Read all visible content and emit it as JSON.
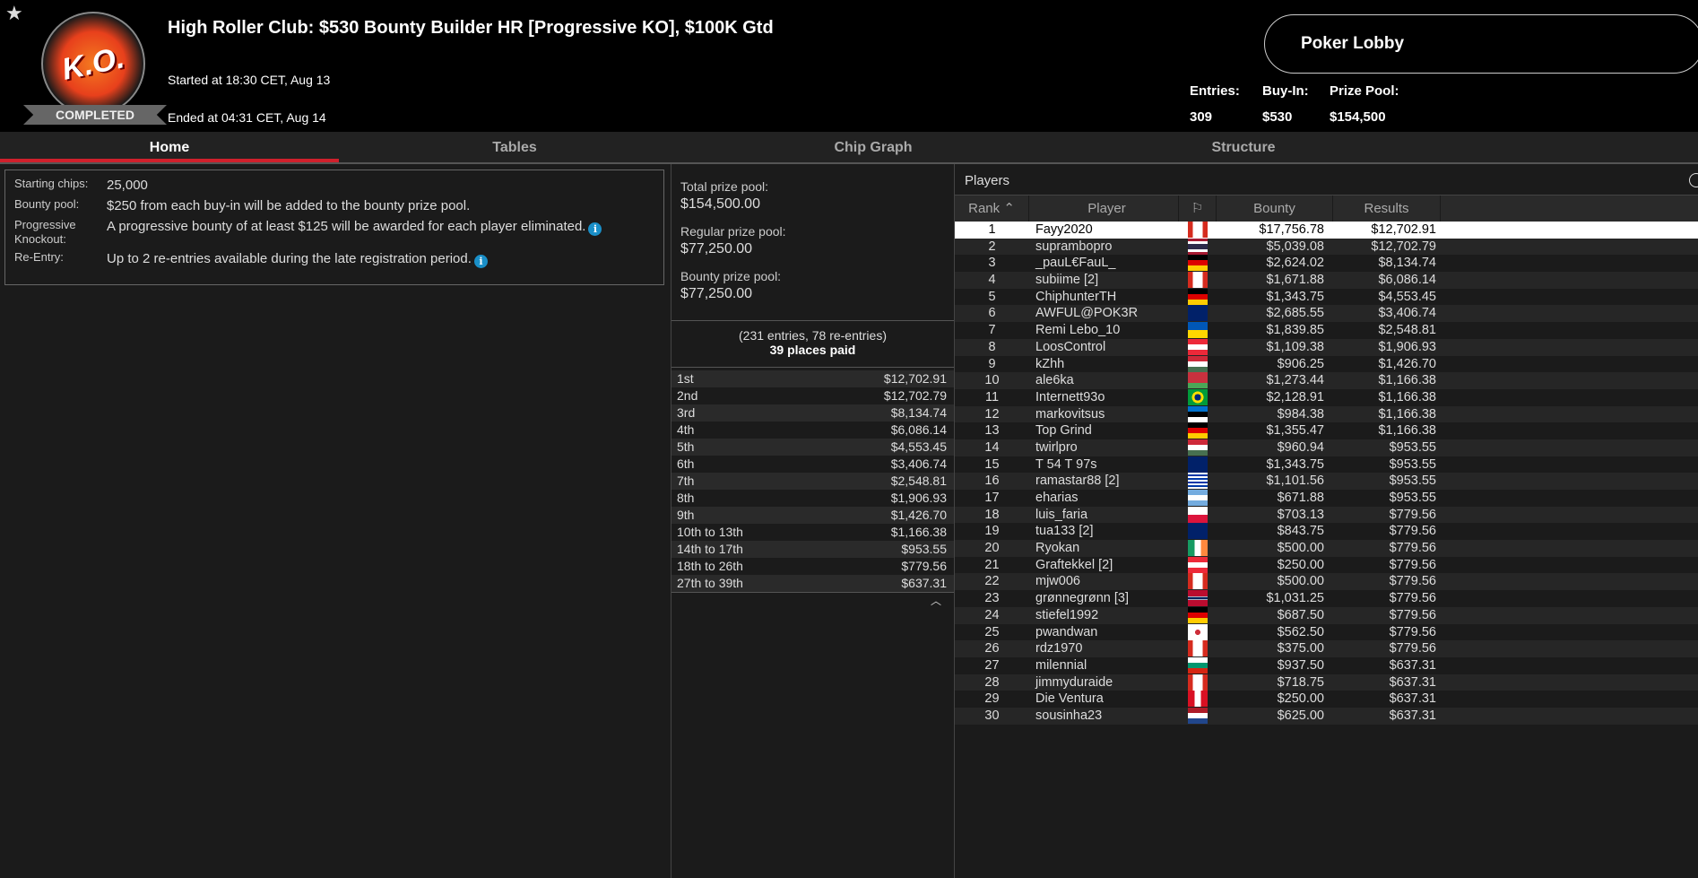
{
  "header": {
    "logo_text": "K.O.",
    "status": "COMPLETED",
    "title": "High Roller Club: $530 Bounty Builder HR [Progressive KO], $100K Gtd",
    "started": "Started at 18:30 CET, Aug 13",
    "ended": "Ended at 04:31 CET, Aug 14",
    "lobby_button": "Poker Lobby",
    "stats": {
      "entries_label": "Entries:",
      "entries": "309",
      "buyin_label": "Buy-In:",
      "buyin": "$530",
      "prize_label": "Prize Pool:",
      "prize": "$154,500"
    }
  },
  "tabs": [
    "Home",
    "Tables",
    "Chip Graph",
    "Structure"
  ],
  "info": [
    {
      "k": "Starting chips:",
      "v": "25,000",
      "i": false
    },
    {
      "k": "Bounty pool:",
      "v": "$250 from each buy-in will be added to the bounty prize pool.",
      "i": false
    },
    {
      "k": "Progressive Knockout:",
      "v": "A progressive bounty of at least $125 will be awarded for each player eliminated.",
      "i": true
    },
    {
      "k": "Re-Entry:",
      "v": "Up to 2 re-entries available during the late registration period.",
      "i": true
    }
  ],
  "pool": {
    "total_label": "Total prize pool:",
    "total": "$154,500.00",
    "regular_label": "Regular prize pool:",
    "regular": "$77,250.00",
    "bounty_label": "Bounty prize pool:",
    "bounty": "$77,250.00",
    "entries_note": "(231 entries, 78 re-entries)",
    "places_paid": "39 places paid"
  },
  "payouts": [
    [
      "1st",
      "$12,702.91"
    ],
    [
      "2nd",
      "$12,702.79"
    ],
    [
      "3rd",
      "$8,134.74"
    ],
    [
      "4th",
      "$6,086.14"
    ],
    [
      "5th",
      "$4,553.45"
    ],
    [
      "6th",
      "$3,406.74"
    ],
    [
      "7th",
      "$2,548.81"
    ],
    [
      "8th",
      "$1,906.93"
    ],
    [
      "9th",
      "$1,426.70"
    ],
    [
      "10th to 13th",
      "$1,166.38"
    ],
    [
      "14th to 17th",
      "$953.55"
    ],
    [
      "18th to 26th",
      "$779.56"
    ],
    [
      "27th to 39th",
      "$637.31"
    ]
  ],
  "players": {
    "title": "Players",
    "columns": [
      "Rank",
      "Player",
      "Bounty",
      "Results"
    ],
    "rows": [
      [
        "1",
        "Fayy2020",
        "ca",
        "$17,756.78",
        "$12,702.91"
      ],
      [
        "2",
        "suprambopro",
        "th",
        "$5,039.08",
        "$12,702.79"
      ],
      [
        "3",
        "_pauL€FauL_",
        "de",
        "$2,624.02",
        "$8,134.74"
      ],
      [
        "4",
        "subiime [2]",
        "ca",
        "$1,671.88",
        "$6,086.14"
      ],
      [
        "5",
        "ChiphunterTH",
        "de",
        "$1,343.75",
        "$4,553.45"
      ],
      [
        "6",
        "AWFUL@POK3R",
        "gb",
        "$2,685.55",
        "$3,406.74"
      ],
      [
        "7",
        "Remi Lebo_10",
        "ua",
        "$1,839.85",
        "$2,548.81"
      ],
      [
        "8",
        "LoosControl",
        "at",
        "$1,109.38",
        "$1,906.93"
      ],
      [
        "9",
        "kZhh",
        "hu",
        "$906.25",
        "$1,426.70"
      ],
      [
        "10",
        "ale6ka",
        "by",
        "$1,273.44",
        "$1,166.38"
      ],
      [
        "11",
        "Internett93o",
        "br",
        "$2,128.91",
        "$1,166.38"
      ],
      [
        "12",
        "markovitsus",
        "ee",
        "$984.38",
        "$1,166.38"
      ],
      [
        "13",
        "Top Grind",
        "de",
        "$1,355.47",
        "$1,166.38"
      ],
      [
        "14",
        "twirlpro",
        "hu",
        "$960.94",
        "$953.55"
      ],
      [
        "15",
        "T 54 T 97s",
        "gb",
        "$1,343.75",
        "$953.55"
      ],
      [
        "16",
        "ramastar88 [2]",
        "uy",
        "$1,101.56",
        "$953.55"
      ],
      [
        "17",
        "eharias",
        "ar",
        "$671.88",
        "$953.55"
      ],
      [
        "18",
        "luis_faria",
        "pl",
        "$703.13",
        "$779.56"
      ],
      [
        "19",
        "tua133 [2]",
        "gb",
        "$843.75",
        "$779.56"
      ],
      [
        "20",
        "Ryokan",
        "ie",
        "$500.00",
        "$779.56"
      ],
      [
        "21",
        "Graftekkel [2]",
        "at",
        "$250.00",
        "$779.56"
      ],
      [
        "22",
        "mjw006",
        "ca",
        "$500.00",
        "$779.56"
      ],
      [
        "23",
        "grønnegrønn [3]",
        "no",
        "$1,031.25",
        "$779.56"
      ],
      [
        "24",
        "stiefel1992",
        "de",
        "$687.50",
        "$779.56"
      ],
      [
        "25",
        "pwandwan",
        "kr",
        "$562.50",
        "$779.56"
      ],
      [
        "26",
        "rdz1970",
        "ca",
        "$375.00",
        "$779.56"
      ],
      [
        "27",
        "milennial",
        "bg",
        "$937.50",
        "$637.31"
      ],
      [
        "28",
        "jimmyduraide",
        "ca",
        "$718.75",
        "$637.31"
      ],
      [
        "29",
        "Die Ventura",
        "pe",
        "$250.00",
        "$637.31"
      ],
      [
        "30",
        "sousinha23",
        "nl",
        "$625.00",
        "$637.31"
      ]
    ]
  },
  "colors": {
    "accent": "#d0202c",
    "info": "#1a8fc8"
  }
}
